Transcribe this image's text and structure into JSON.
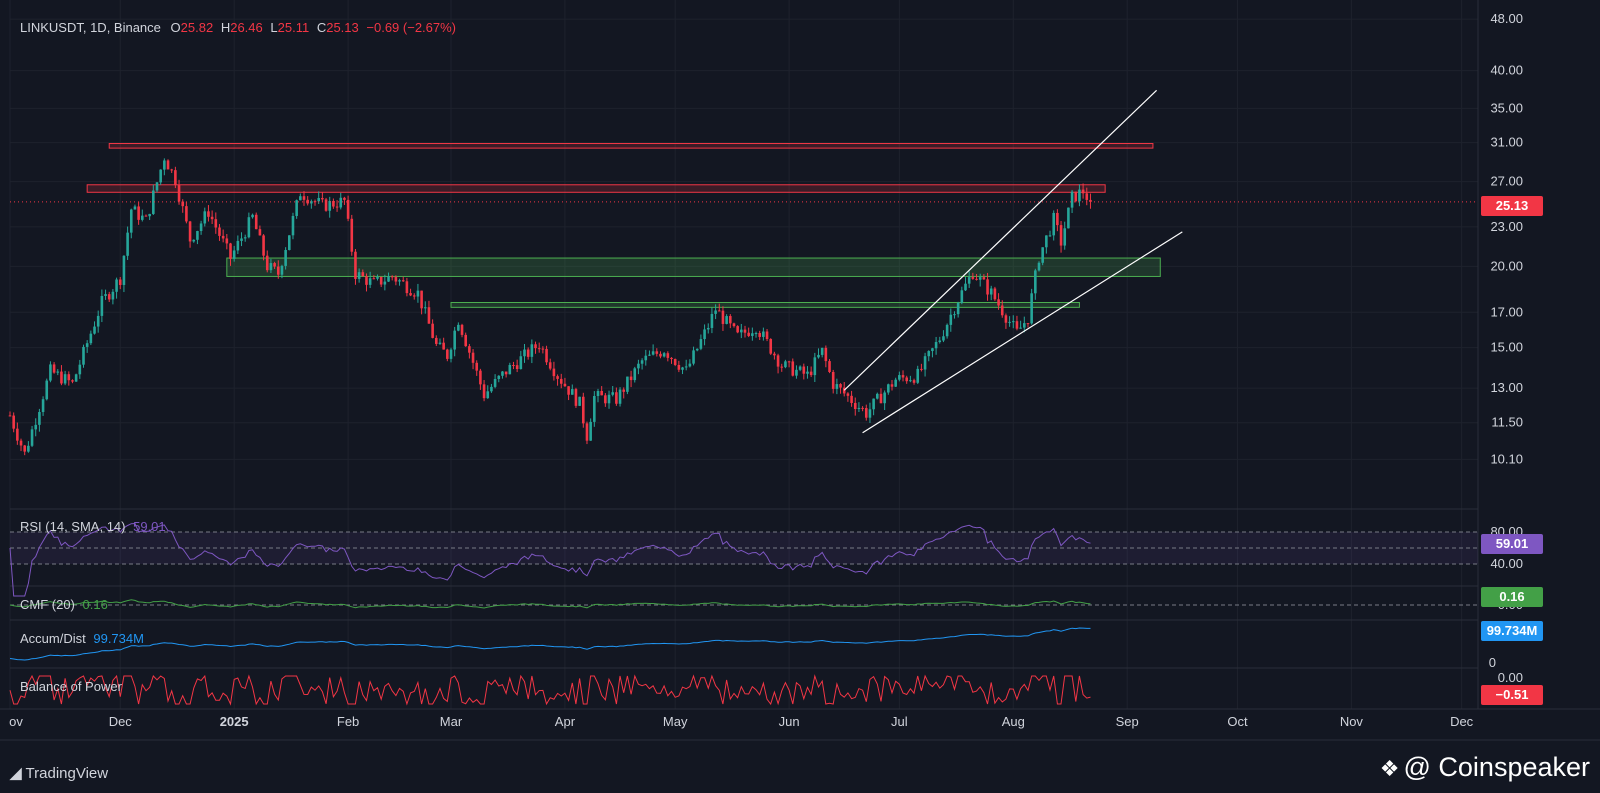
{
  "header": {
    "symbol": "LINKUSDT, 1D, Binance",
    "o_label": "O",
    "o_value": "25.82",
    "h_label": "H",
    "h_value": "26.46",
    "l_label": "L",
    "l_value": "25.11",
    "c_label": "C",
    "c_value": "25.13",
    "change": "−0.69 (−2.67%)"
  },
  "colors": {
    "background": "#131722",
    "up": "#26a69a",
    "down": "#f23645",
    "resistance": "#f23645",
    "support": "#4caf50",
    "rsi": "#7e57c2",
    "cmf": "#43a047",
    "ad": "#2196f3",
    "bop": "#f23645",
    "trendline": "#ffffff",
    "grid": "#1e222d",
    "text": "#d1d4dc"
  },
  "panels": {
    "rsi": {
      "label": "RSI (14, SMA, 14)",
      "value": "59.01",
      "levels": [
        "80.00",
        "40.00"
      ]
    },
    "cmf": {
      "label": "CMF (20)",
      "value": "0.16",
      "axis": "0.00"
    },
    "ad": {
      "label": "Accum/Dist",
      "value": "99.734M",
      "axis": "0"
    },
    "bop": {
      "label": "Balance of Power",
      "value": "−0.51",
      "axis": "0.00"
    }
  },
  "footer": {
    "brand": "TradingView",
    "watermark": "@ Coinspeaker"
  },
  "chart_data": {
    "type": "candlestick",
    "title": "LINKUSDT, 1D, Binance",
    "x_tick_labels": [
      "ov",
      "Dec",
      "2025",
      "Feb",
      "Mar",
      "Apr",
      "May",
      "Jun",
      "Jul",
      "Aug",
      "Sep",
      "Oct",
      "Nov",
      "Dec"
    ],
    "y_axis": {
      "scale": "log",
      "ylim": [
        9.0,
        48.0
      ],
      "ticks": [
        "48.00",
        "40.00",
        "35.00",
        "31.00",
        "27.00",
        "23.00",
        "20.00",
        "17.00",
        "15.00",
        "13.00",
        "11.50",
        "10.10"
      ]
    },
    "last_price": "25.13",
    "ohlc_anchors": [
      {
        "date": "2024-11-01",
        "close": 11.8
      },
      {
        "date": "2024-11-05",
        "close": 10.3
      },
      {
        "date": "2024-11-12",
        "close": 13.8
      },
      {
        "date": "2024-11-18",
        "close": 13.2
      },
      {
        "date": "2024-11-26",
        "close": 17.6
      },
      {
        "date": "2024-12-01",
        "close": 19.2
      },
      {
        "date": "2024-12-04",
        "close": 24.5
      },
      {
        "date": "2024-12-08",
        "close": 23.5
      },
      {
        "date": "2024-12-13",
        "close": 29.5
      },
      {
        "date": "2024-12-16",
        "close": 27.2
      },
      {
        "date": "2024-12-20",
        "close": 22.0
      },
      {
        "date": "2024-12-25",
        "close": 24.3
      },
      {
        "date": "2024-12-31",
        "close": 20.6
      },
      {
        "date": "2025-01-06",
        "close": 23.8
      },
      {
        "date": "2025-01-10",
        "close": 20.0
      },
      {
        "date": "2025-01-13",
        "close": 19.5
      },
      {
        "date": "2025-01-19",
        "close": 26.0
      },
      {
        "date": "2025-01-25",
        "close": 24.8
      },
      {
        "date": "2025-01-31",
        "close": 25.2
      },
      {
        "date": "2025-02-03",
        "close": 19.5
      },
      {
        "date": "2025-02-08",
        "close": 18.8
      },
      {
        "date": "2025-02-13",
        "close": 19.3
      },
      {
        "date": "2025-02-20",
        "close": 18.2
      },
      {
        "date": "2025-02-25",
        "close": 15.1
      },
      {
        "date": "2025-02-28",
        "close": 14.6
      },
      {
        "date": "2025-03-03",
        "close": 16.6
      },
      {
        "date": "2025-03-10",
        "close": 12.7
      },
      {
        "date": "2025-03-16",
        "close": 13.8
      },
      {
        "date": "2025-03-25",
        "close": 15.2
      },
      {
        "date": "2025-03-30",
        "close": 13.6
      },
      {
        "date": "2025-04-05",
        "close": 12.3
      },
      {
        "date": "2025-04-07",
        "close": 11.0
      },
      {
        "date": "2025-04-09",
        "close": 12.6
      },
      {
        "date": "2025-04-15",
        "close": 12.5
      },
      {
        "date": "2025-04-22",
        "close": 14.3
      },
      {
        "date": "2025-04-28",
        "close": 14.9
      },
      {
        "date": "2025-05-04",
        "close": 13.8
      },
      {
        "date": "2025-05-10",
        "close": 16.2
      },
      {
        "date": "2025-05-12",
        "close": 17.2
      },
      {
        "date": "2025-05-18",
        "close": 15.6
      },
      {
        "date": "2025-05-23",
        "close": 16.2
      },
      {
        "date": "2025-05-30",
        "close": 14.1
      },
      {
        "date": "2025-06-06",
        "close": 13.6
      },
      {
        "date": "2025-06-10",
        "close": 14.8
      },
      {
        "date": "2025-06-13",
        "close": 13.2
      },
      {
        "date": "2025-06-22",
        "close": 11.9
      },
      {
        "date": "2025-06-30",
        "close": 13.4
      },
      {
        "date": "2025-07-06",
        "close": 13.6
      },
      {
        "date": "2025-07-12",
        "close": 15.5
      },
      {
        "date": "2025-07-17",
        "close": 17.8
      },
      {
        "date": "2025-07-21",
        "close": 19.6
      },
      {
        "date": "2025-07-26",
        "close": 18.2
      },
      {
        "date": "2025-08-02",
        "close": 15.8
      },
      {
        "date": "2025-08-05",
        "close": 16.7
      },
      {
        "date": "2025-08-08",
        "close": 20.7
      },
      {
        "date": "2025-08-12",
        "close": 23.6
      },
      {
        "date": "2025-08-14",
        "close": 21.8
      },
      {
        "date": "2025-08-17",
        "close": 25.5
      },
      {
        "date": "2025-08-20",
        "close": 26.1
      },
      {
        "date": "2025-08-22",
        "close": 25.13
      }
    ],
    "resistance_zones": [
      {
        "from": "2024-11-28",
        "to": "2025-09-08",
        "low": 30.4,
        "high": 30.9
      },
      {
        "from": "2024-11-22",
        "to": "2025-08-26",
        "low": 26.0,
        "high": 26.7
      }
    ],
    "support_zones": [
      {
        "from": "2024-12-30",
        "to": "2025-09-10",
        "low": 19.3,
        "high": 20.6
      },
      {
        "from": "2025-03-01",
        "to": "2025-08-19",
        "low": 17.3,
        "high": 17.6
      }
    ],
    "trendlines": [
      {
        "from": "2025-06-16",
        "y1": 12.9,
        "to": "2025-09-09",
        "y2": 37.3
      },
      {
        "from": "2025-06-21",
        "y1": 11.1,
        "to": "2025-09-16",
        "y2": 22.6
      }
    ],
    "indicators": {
      "rsi": {
        "last": 59.01,
        "levels": [
          80,
          40
        ]
      },
      "cmf": {
        "last": 0.16
      },
      "accum_dist": {
        "last": "99.734M"
      },
      "balance_of_power": {
        "last": -0.51
      }
    }
  }
}
